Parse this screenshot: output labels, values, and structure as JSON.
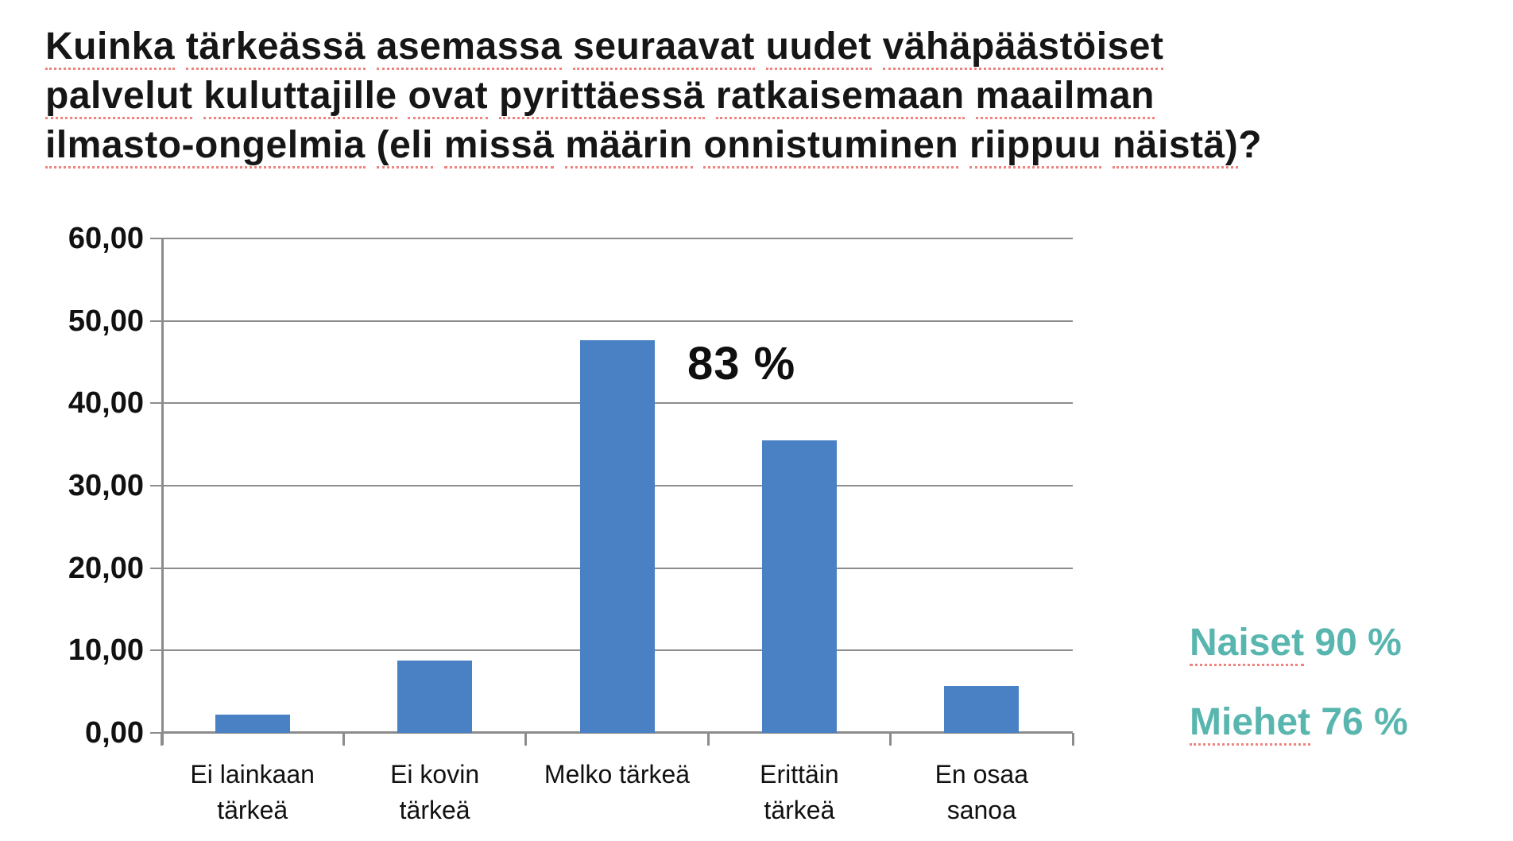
{
  "title": {
    "lines": [
      "Kuinka tärkeässä asemassa seuraavat uudet vähäpäästöiset",
      "palvelut kuluttajille ovat pyrittäessä ratkaisemaan maailman",
      "ilmasto-ongelmia (eli missä määrin onnistuminen riippuu näistä)?"
    ]
  },
  "chart_data": {
    "type": "bar",
    "categories": [
      "Ei lainkaan tärkeä",
      "Ei kovin tärkeä",
      "Melko tärkeä",
      "Erittäin tärkeä",
      "En osaa sanoa"
    ],
    "category_label_lines": [
      [
        "Ei lainkaan",
        "tärkeä"
      ],
      [
        "Ei kovin",
        "tärkeä"
      ],
      [
        "Melko tärkeä"
      ],
      [
        "Erittäin",
        "tärkeä"
      ],
      [
        "En osaa",
        "sanoa"
      ]
    ],
    "values": [
      2.2,
      8.8,
      47.7,
      35.5,
      5.7
    ],
    "ylim": [
      0,
      60
    ],
    "ytick_step": 10,
    "ytick_labels_top_to_bottom": [
      "60,00",
      "50,00",
      "40,00",
      "30,00",
      "20,00",
      "10,00",
      "0,00"
    ],
    "grid": true,
    "legend": "none",
    "annotation": "83 %",
    "title": "",
    "xlabel": "",
    "ylabel": ""
  },
  "side_labels": {
    "items": [
      {
        "label": "Naiset",
        "value": "90 %"
      },
      {
        "label": "Miehet",
        "value": "76 %"
      }
    ]
  },
  "colors": {
    "bar": "#4a80c4",
    "grid": "#8c8c8c",
    "teal_text": "#59b6af",
    "title_text": "#161616",
    "spellcheck_underline": "#f0837e"
  }
}
